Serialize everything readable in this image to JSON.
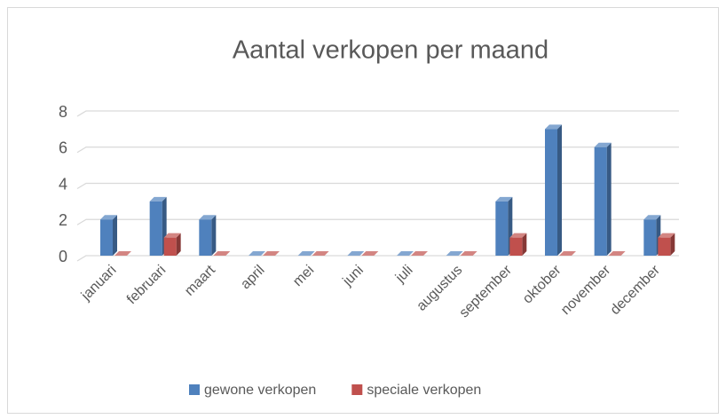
{
  "chart_data": {
    "type": "bar3d",
    "title": "Aantal verkopen per maand",
    "categories": [
      "januari",
      "februari",
      "maart",
      "april",
      "mei",
      "juni",
      "juli",
      "augustus",
      "september",
      "oktober",
      "november",
      "december"
    ],
    "series": [
      {
        "name": "gewone verkopen",
        "color": "#4f81bd",
        "values": [
          2,
          3,
          2,
          0,
          0,
          0,
          0,
          0,
          3,
          7,
          6,
          2
        ]
      },
      {
        "name": "speciale verkopen",
        "color": "#c0504d",
        "values": [
          0,
          1,
          0,
          0,
          0,
          0,
          0,
          0,
          1,
          0,
          0,
          1
        ]
      }
    ],
    "ylim": [
      0,
      8
    ],
    "yticks": [
      0,
      2,
      4,
      6,
      8
    ],
    "grid": true,
    "legend": "bottom"
  }
}
